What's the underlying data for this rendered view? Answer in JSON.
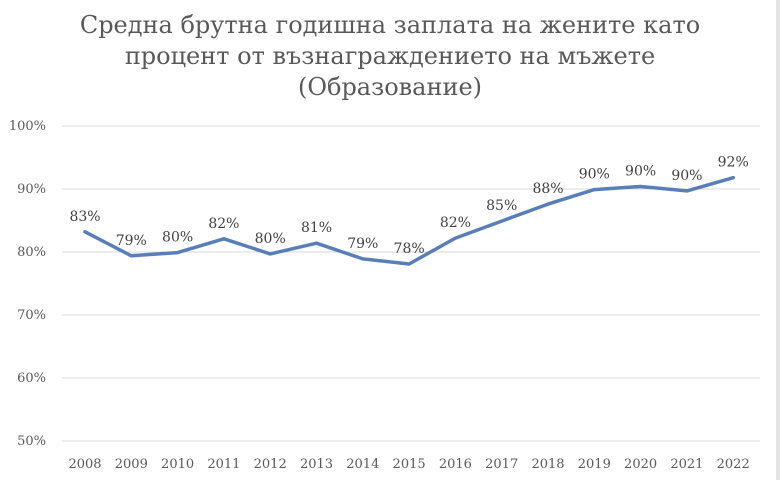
{
  "chart_data": {
    "type": "line",
    "title_lines": [
      "Средна брутна годишна заплата на жените като",
      "процент от възнаграждението на мъжете",
      "(Образование)"
    ],
    "xlabel": "",
    "ylabel": "",
    "categories": [
      "2008",
      "2009",
      "2010",
      "2011",
      "2012",
      "2013",
      "2014",
      "2015",
      "2016",
      "2017",
      "2018",
      "2019",
      "2020",
      "2021",
      "2022"
    ],
    "series": [
      {
        "values": [
          83.2,
          79.4,
          79.9,
          82.1,
          79.7,
          81.4,
          78.9,
          78.1,
          82.2,
          84.9,
          87.6,
          89.9,
          90.4,
          89.7,
          91.8
        ],
        "labels": [
          "83%",
          "79%",
          "80%",
          "82%",
          "80%",
          "81%",
          "79%",
          "78%",
          "82%",
          "85%",
          "88%",
          "90%",
          "90%",
          "90%",
          "92%"
        ],
        "color": "#5a7fb8"
      }
    ],
    "ylim": [
      50,
      100
    ],
    "yticks": [
      50,
      60,
      70,
      80,
      90,
      100
    ],
    "ytick_labels": [
      "50%",
      "60%",
      "70%",
      "80%",
      "90%",
      "100%"
    ],
    "grid": true,
    "legend": "none"
  }
}
